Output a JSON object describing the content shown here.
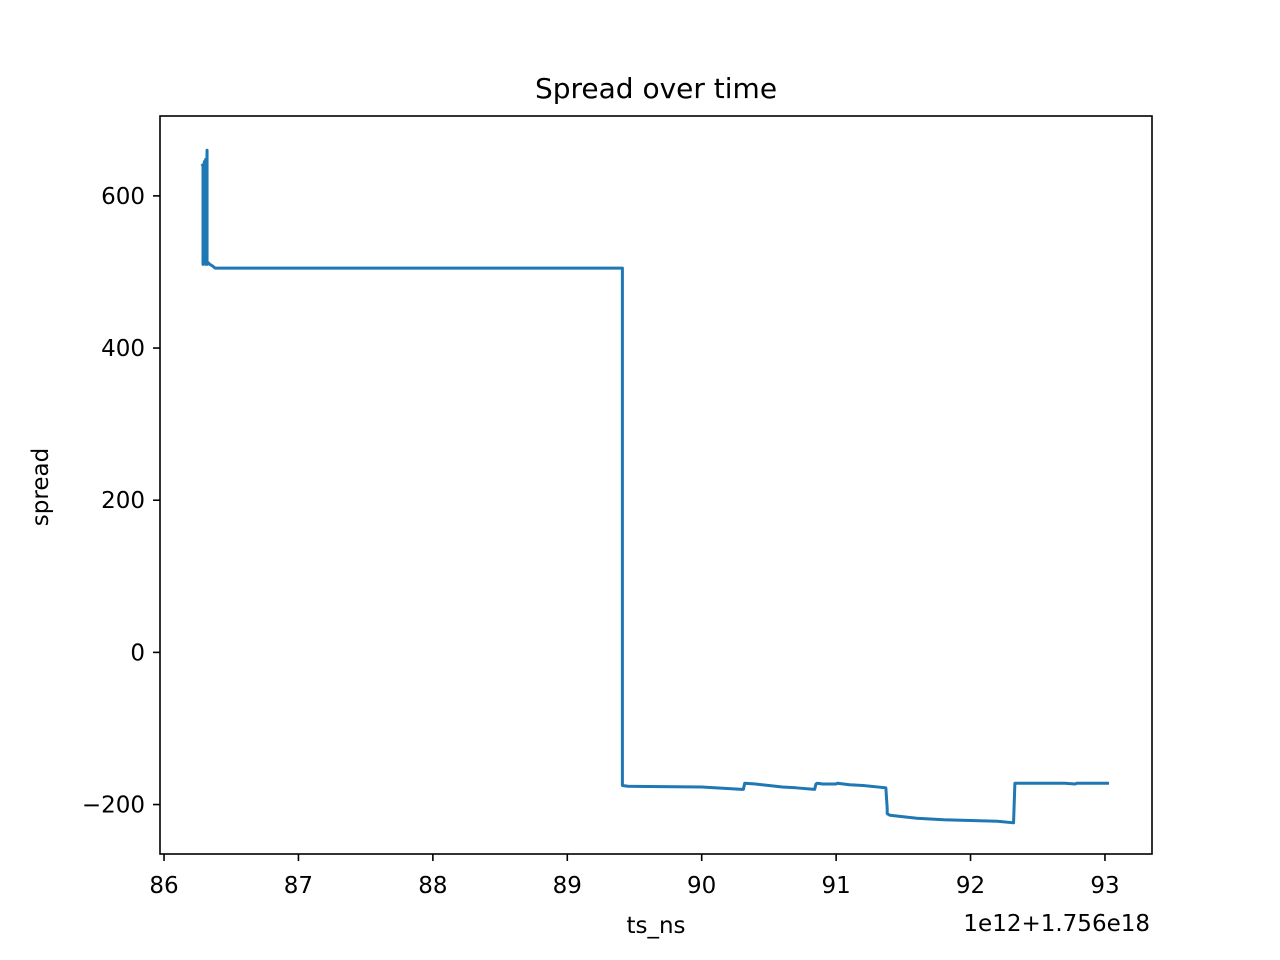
{
  "chart_data": {
    "type": "line",
    "title": "Spread over time",
    "xlabel": "ts_ns",
    "ylabel": "spread",
    "x_offset_label": "1e12+1.756e18",
    "xlim": [
      85.97,
      93.35
    ],
    "ylim": [
      -265,
      705
    ],
    "xticks": [
      86,
      87,
      88,
      89,
      90,
      91,
      92,
      93
    ],
    "yticks": [
      600,
      400,
      200,
      0,
      -200
    ],
    "xtick_labels": [
      "86",
      "87",
      "88",
      "89",
      "90",
      "91",
      "92",
      "93"
    ],
    "ytick_labels": [
      "600",
      "400",
      "200",
      "0",
      "−200"
    ],
    "grid": false,
    "series": [
      {
        "color": "#1f77b4",
        "x": [
          86.28,
          86.29,
          86.29,
          86.3,
          86.3,
          86.31,
          86.31,
          86.32,
          86.32,
          86.33,
          86.34,
          86.36,
          86.38,
          86.4,
          89.4,
          89.41,
          89.41,
          89.45,
          90.0,
          90.3,
          90.31,
          90.32,
          90.4,
          90.5,
          90.6,
          90.7,
          90.84,
          90.85,
          90.86,
          90.9,
          91.0,
          91.01,
          91.1,
          91.2,
          91.37,
          91.38,
          91.38,
          91.39,
          91.4,
          91.5,
          91.6,
          91.8,
          92.0,
          92.2,
          92.32,
          92.33,
          92.5,
          92.7,
          92.78,
          92.79,
          93.03
        ],
        "y": [
          642,
          640,
          510,
          645,
          511,
          648,
          510,
          660,
          510,
          512,
          510,
          508,
          505,
          505,
          505,
          505,
          -175,
          -176,
          -177,
          -180,
          -180,
          -172,
          -173,
          -175,
          -177,
          -178,
          -180,
          -173,
          -172,
          -173,
          -173,
          -172,
          -174,
          -175,
          -178,
          -205,
          -212,
          -213,
          -214,
          -216,
          -218,
          -220,
          -221,
          -222,
          -224,
          -172,
          -172,
          -172,
          -173,
          -172,
          -172
        ]
      }
    ]
  }
}
